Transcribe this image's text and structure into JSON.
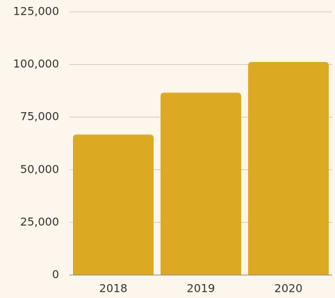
{
  "chart_data": {
    "type": "bar",
    "categories": [
      "2018",
      "2019",
      "2020"
    ],
    "values": [
      66700,
      86600,
      101200
    ],
    "color": "#dca923",
    "ylim": [
      0,
      125000
    ],
    "yticks": [
      0,
      {
        "value": 25000,
        "label": "25,000"
      },
      {
        "value": 50000,
        "label": "50,000"
      },
      {
        "value": 75000,
        "label": "75,000"
      },
      {
        "value": 100000,
        "label": "100,000"
      },
      {
        "value": 125000,
        "label": "125,000"
      }
    ],
    "grid": true
  }
}
